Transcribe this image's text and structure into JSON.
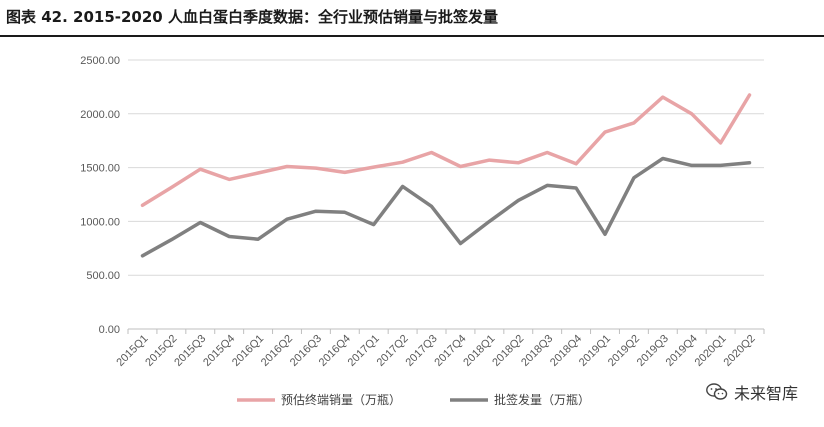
{
  "title": "图表 42. 2015-2020 人血白蛋白季度数据：全行业预估销量与批签发量",
  "watermark": {
    "text": "未来智库",
    "icon": "wechat-icon"
  },
  "chart_data": {
    "type": "line",
    "categories": [
      "2015Q1",
      "2015Q2",
      "2015Q3",
      "2015Q4",
      "2016Q1",
      "2016Q2",
      "2016Q3",
      "2016Q4",
      "2017Q1",
      "2017Q2",
      "2017Q3",
      "2017Q4",
      "2018Q1",
      "2018Q2",
      "2018Q3",
      "2018Q4",
      "2019Q1",
      "2019Q2",
      "2019Q3",
      "2019Q4",
      "2020Q1",
      "2020Q2"
    ],
    "ylim": [
      0,
      2500
    ],
    "yticks": [
      "0.00",
      "500.00",
      "1000.00",
      "1500.00",
      "2000.00",
      "2500.00"
    ],
    "grid": true,
    "legend": "bottom-center",
    "series": [
      {
        "name": "预估终端销量（万瓶）",
        "color": "#e8a4a6",
        "values": [
          1150,
          1315,
          1485,
          1390,
          1450,
          1510,
          1495,
          1455,
          1505,
          1550,
          1640,
          1510,
          1570,
          1545,
          1640,
          1535,
          1830,
          1915,
          2155,
          2000,
          1730,
          2175
        ]
      },
      {
        "name": "批签发量（万瓶）",
        "color": "#808080",
        "values": [
          680,
          830,
          990,
          860,
          835,
          1020,
          1095,
          1085,
          970,
          1325,
          1140,
          795,
          1000,
          1195,
          1335,
          1310,
          880,
          1405,
          1585,
          1520,
          1520,
          1545
        ]
      }
    ]
  }
}
